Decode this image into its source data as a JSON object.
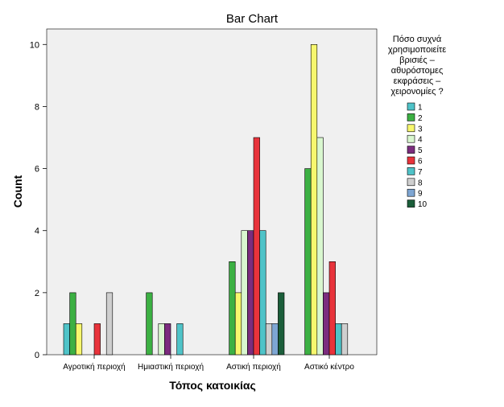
{
  "chart_data": {
    "type": "bar",
    "title": "Bar Chart",
    "xlabel": "Τόπος κατοικίας",
    "ylabel": "Count",
    "ylim": [
      0,
      10.5
    ],
    "yticks": [
      0,
      2,
      4,
      6,
      8,
      10
    ],
    "grid": false,
    "legend_position": "right",
    "legend_title": [
      "Πόσο συχνά",
      "χρησιμοποιείτε",
      "βρισιές –",
      "αθυρόστομες",
      "εκφράσεις –",
      "χειρονομίες ?"
    ],
    "categories": [
      "Αγροτική περιοχή",
      "Ημιαστική περιοχή",
      "Αστική περιοχή",
      "Αστικό κέντρο"
    ],
    "series": [
      {
        "name": "1",
        "color": "#4fc3c8",
        "values": [
          1,
          0,
          0,
          0
        ]
      },
      {
        "name": "2",
        "color": "#3cb043",
        "values": [
          2,
          2,
          3,
          6
        ]
      },
      {
        "name": "3",
        "color": "#f7f76e",
        "values": [
          1,
          0,
          2,
          10
        ]
      },
      {
        "name": "4",
        "color": "#d9f7cf",
        "values": [
          0,
          1,
          4,
          7
        ]
      },
      {
        "name": "5",
        "color": "#7b2d7e",
        "values": [
          0,
          1,
          4,
          2
        ]
      },
      {
        "name": "6",
        "color": "#e8333b",
        "values": [
          1,
          0,
          7,
          3
        ]
      },
      {
        "name": "7",
        "color": "#4fc3c8",
        "values": [
          0,
          1,
          4,
          1
        ]
      },
      {
        "name": "8",
        "color": "#cfcfcf",
        "values": [
          2,
          0,
          1,
          1
        ]
      },
      {
        "name": "9",
        "color": "#7ea6d3",
        "values": [
          0,
          0,
          1,
          0
        ]
      },
      {
        "name": "10",
        "color": "#1b5e3a",
        "values": [
          0,
          0,
          2,
          0
        ]
      }
    ]
  }
}
